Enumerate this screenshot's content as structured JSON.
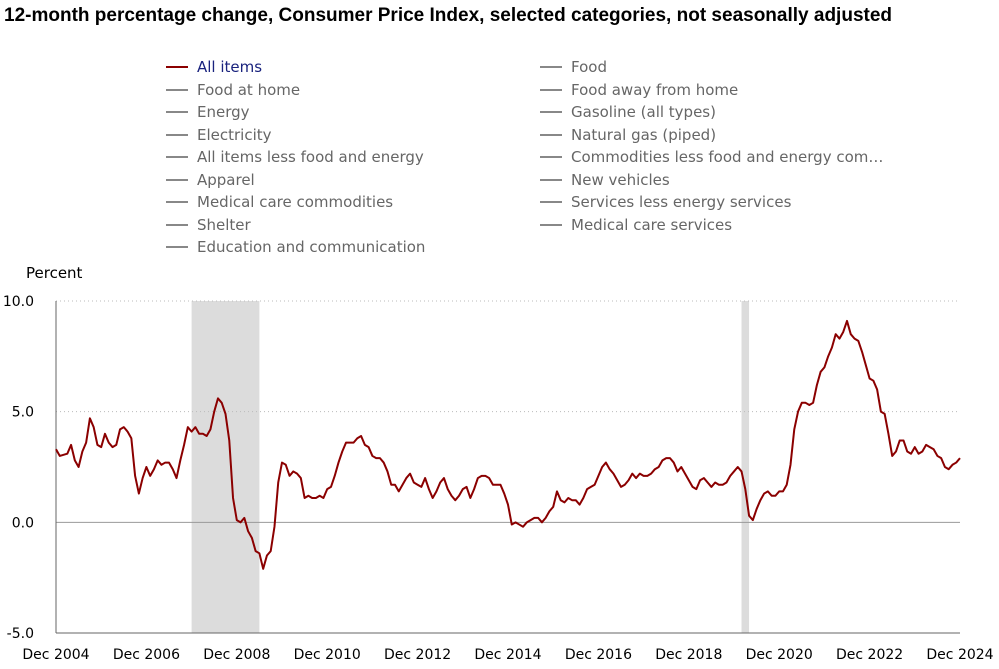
{
  "chart_data": {
    "type": "line",
    "title": "12-month percentage change, Consumer Price Index, selected categories, not seasonally adjusted",
    "ylabel": "Percent",
    "xlabel": "",
    "ylim": [
      -5.0,
      10.0
    ],
    "y_ticks": [
      "10.0",
      "5.0",
      "0.0",
      "-5.0"
    ],
    "x_ticks": [
      "Dec 2004",
      "Dec 2006",
      "Dec 2008",
      "Dec 2010",
      "Dec 2012",
      "Dec 2014",
      "Dec 2016",
      "Dec 2018",
      "Dec 2020",
      "Dec 2022",
      "Dec 2024"
    ],
    "grid": "horizontal dotted",
    "recessions": [
      {
        "start": "Dec 2007",
        "end": "Jun 2009"
      },
      {
        "start": "Feb 2020",
        "end": "Apr 2020"
      }
    ],
    "legend": [
      {
        "label": "All items",
        "active": true
      },
      {
        "label": "Food at home",
        "active": false
      },
      {
        "label": "Energy",
        "active": false
      },
      {
        "label": "Electricity",
        "active": false
      },
      {
        "label": "All items less food and energy",
        "active": false
      },
      {
        "label": "Apparel",
        "active": false
      },
      {
        "label": "Medical care commodities",
        "active": false
      },
      {
        "label": "Shelter",
        "active": false
      },
      {
        "label": "Education and communication",
        "active": false
      },
      {
        "label": "Food",
        "active": false
      },
      {
        "label": "Food away from home",
        "active": false
      },
      {
        "label": "Gasoline (all types)",
        "active": false
      },
      {
        "label": "Natural gas (piped)",
        "active": false
      },
      {
        "label": "Commodities less food and energy com…",
        "active": false
      },
      {
        "label": "New vehicles",
        "active": false
      },
      {
        "label": "Services less energy services",
        "active": false
      },
      {
        "label": "Medical care services",
        "active": false
      }
    ],
    "series": [
      {
        "name": "All items",
        "color": "#8b0000",
        "start": "Dec 2004",
        "keypoints": [
          [
            "Dec 2004",
            3.3
          ],
          [
            "Jan 2005",
            3.0
          ],
          [
            "Mar 2005",
            3.1
          ],
          [
            "Apr 2005",
            3.5
          ],
          [
            "May 2005",
            2.8
          ],
          [
            "Jun 2005",
            2.5
          ],
          [
            "Jul 2005",
            3.2
          ],
          [
            "Aug 2005",
            3.6
          ],
          [
            "Sep 2005",
            4.7
          ],
          [
            "Oct 2005",
            4.3
          ],
          [
            "Nov 2005",
            3.5
          ],
          [
            "Dec 2005",
            3.4
          ],
          [
            "Jan 2006",
            4.0
          ],
          [
            "Feb 2006",
            3.6
          ],
          [
            "Mar 2006",
            3.4
          ],
          [
            "Apr 2006",
            3.5
          ],
          [
            "May 2006",
            4.2
          ],
          [
            "Jun 2006",
            4.3
          ],
          [
            "Jul 2006",
            4.1
          ],
          [
            "Aug 2006",
            3.8
          ],
          [
            "Sep 2006",
            2.1
          ],
          [
            "Oct 2006",
            1.3
          ],
          [
            "Nov 2006",
            2.0
          ],
          [
            "Dec 2006",
            2.5
          ],
          [
            "Jan 2007",
            2.1
          ],
          [
            "Feb 2007",
            2.4
          ],
          [
            "Mar 2007",
            2.8
          ],
          [
            "Apr 2007",
            2.6
          ],
          [
            "May 2007",
            2.7
          ],
          [
            "Jun 2007",
            2.7
          ],
          [
            "Jul 2007",
            2.4
          ],
          [
            "Aug 2007",
            2.0
          ],
          [
            "Sep 2007",
            2.8
          ],
          [
            "Oct 2007",
            3.5
          ],
          [
            "Nov 2007",
            4.3
          ],
          [
            "Dec 2007",
            4.1
          ],
          [
            "Jan 2008",
            4.3
          ],
          [
            "Feb 2008",
            4.0
          ],
          [
            "Mar 2008",
            4.0
          ],
          [
            "Apr 2008",
            3.9
          ],
          [
            "May 2008",
            4.2
          ],
          [
            "Jun 2008",
            5.0
          ],
          [
            "Jul 2008",
            5.6
          ],
          [
            "Aug 2008",
            5.4
          ],
          [
            "Sep 2008",
            4.9
          ],
          [
            "Oct 2008",
            3.7
          ],
          [
            "Nov 2008",
            1.1
          ],
          [
            "Dec 2008",
            0.1
          ],
          [
            "Jan 2009",
            0.0
          ],
          [
            "Feb 2009",
            0.2
          ],
          [
            "Mar 2009",
            -0.4
          ],
          [
            "Apr 2009",
            -0.7
          ],
          [
            "May 2009",
            -1.3
          ],
          [
            "Jun 2009",
            -1.4
          ],
          [
            "Jul 2009",
            -2.1
          ],
          [
            "Aug 2009",
            -1.5
          ],
          [
            "Sep 2009",
            -1.3
          ],
          [
            "Oct 2009",
            -0.2
          ],
          [
            "Nov 2009",
            1.8
          ],
          [
            "Dec 2009",
            2.7
          ],
          [
            "Jan 2010",
            2.6
          ],
          [
            "Feb 2010",
            2.1
          ],
          [
            "Mar 2010",
            2.3
          ],
          [
            "Apr 2010",
            2.2
          ],
          [
            "May 2010",
            2.0
          ],
          [
            "Jun 2010",
            1.1
          ],
          [
            "Jul 2010",
            1.2
          ],
          [
            "Aug 2010",
            1.1
          ],
          [
            "Sep 2010",
            1.1
          ],
          [
            "Oct 2010",
            1.2
          ],
          [
            "Nov 2010",
            1.1
          ],
          [
            "Dec 2010",
            1.5
          ],
          [
            "Jan 2011",
            1.6
          ],
          [
            "Feb 2011",
            2.1
          ],
          [
            "Mar 2011",
            2.7
          ],
          [
            "Apr 2011",
            3.2
          ],
          [
            "May 2011",
            3.6
          ],
          [
            "Jun 2011",
            3.6
          ],
          [
            "Jul 2011",
            3.6
          ],
          [
            "Aug 2011",
            3.8
          ],
          [
            "Sep 2011",
            3.9
          ],
          [
            "Oct 2011",
            3.5
          ],
          [
            "Nov 2011",
            3.4
          ],
          [
            "Dec 2011",
            3.0
          ],
          [
            "Jan 2012",
            2.9
          ],
          [
            "Feb 2012",
            2.9
          ],
          [
            "Mar 2012",
            2.7
          ],
          [
            "Apr 2012",
            2.3
          ],
          [
            "May 2012",
            1.7
          ],
          [
            "Jun 2012",
            1.7
          ],
          [
            "Jul 2012",
            1.4
          ],
          [
            "Aug 2012",
            1.7
          ],
          [
            "Sep 2012",
            2.0
          ],
          [
            "Oct 2012",
            2.2
          ],
          [
            "Nov 2012",
            1.8
          ],
          [
            "Dec 2012",
            1.7
          ],
          [
            "Jan 2013",
            1.6
          ],
          [
            "Feb 2013",
            2.0
          ],
          [
            "Mar 2013",
            1.5
          ],
          [
            "Apr 2013",
            1.1
          ],
          [
            "May 2013",
            1.4
          ],
          [
            "Jun 2013",
            1.8
          ],
          [
            "Jul 2013",
            2.0
          ],
          [
            "Aug 2013",
            1.5
          ],
          [
            "Sep 2013",
            1.2
          ],
          [
            "Oct 2013",
            1.0
          ],
          [
            "Nov 2013",
            1.2
          ],
          [
            "Dec 2013",
            1.5
          ],
          [
            "Jan 2014",
            1.6
          ],
          [
            "Feb 2014",
            1.1
          ],
          [
            "Mar 2014",
            1.5
          ],
          [
            "Apr 2014",
            2.0
          ],
          [
            "May 2014",
            2.1
          ],
          [
            "Jun 2014",
            2.1
          ],
          [
            "Jul 2014",
            2.0
          ],
          [
            "Aug 2014",
            1.7
          ],
          [
            "Sep 2014",
            1.7
          ],
          [
            "Oct 2014",
            1.7
          ],
          [
            "Nov 2014",
            1.3
          ],
          [
            "Dec 2014",
            0.8
          ],
          [
            "Jan 2015",
            -0.1
          ],
          [
            "Feb 2015",
            0.0
          ],
          [
            "Mar 2015",
            -0.1
          ],
          [
            "Apr 2015",
            -0.2
          ],
          [
            "May 2015",
            0.0
          ],
          [
            "Jun 2015",
            0.1
          ],
          [
            "Jul 2015",
            0.2
          ],
          [
            "Aug 2015",
            0.2
          ],
          [
            "Sep 2015",
            0.0
          ],
          [
            "Oct 2015",
            0.2
          ],
          [
            "Nov 2015",
            0.5
          ],
          [
            "Dec 2015",
            0.7
          ],
          [
            "Jan 2016",
            1.4
          ],
          [
            "Feb 2016",
            1.0
          ],
          [
            "Mar 2016",
            0.9
          ],
          [
            "Apr 2016",
            1.1
          ],
          [
            "May 2016",
            1.0
          ],
          [
            "Jun 2016",
            1.0
          ],
          [
            "Jul 2016",
            0.8
          ],
          [
            "Aug 2016",
            1.1
          ],
          [
            "Sep 2016",
            1.5
          ],
          [
            "Oct 2016",
            1.6
          ],
          [
            "Nov 2016",
            1.7
          ],
          [
            "Dec 2016",
            2.1
          ],
          [
            "Jan 2017",
            2.5
          ],
          [
            "Feb 2017",
            2.7
          ],
          [
            "Mar 2017",
            2.4
          ],
          [
            "Apr 2017",
            2.2
          ],
          [
            "May 2017",
            1.9
          ],
          [
            "Jun 2017",
            1.6
          ],
          [
            "Jul 2017",
            1.7
          ],
          [
            "Aug 2017",
            1.9
          ],
          [
            "Sep 2017",
            2.2
          ],
          [
            "Oct 2017",
            2.0
          ],
          [
            "Nov 2017",
            2.2
          ],
          [
            "Dec 2017",
            2.1
          ],
          [
            "Jan 2018",
            2.1
          ],
          [
            "Feb 2018",
            2.2
          ],
          [
            "Mar 2018",
            2.4
          ],
          [
            "Apr 2018",
            2.5
          ],
          [
            "May 2018",
            2.8
          ],
          [
            "Jun 2018",
            2.9
          ],
          [
            "Jul 2018",
            2.9
          ],
          [
            "Aug 2018",
            2.7
          ],
          [
            "Sep 2018",
            2.3
          ],
          [
            "Oct 2018",
            2.5
          ],
          [
            "Nov 2018",
            2.2
          ],
          [
            "Dec 2018",
            1.9
          ],
          [
            "Jan 2019",
            1.6
          ],
          [
            "Feb 2019",
            1.5
          ],
          [
            "Mar 2019",
            1.9
          ],
          [
            "Apr 2019",
            2.0
          ],
          [
            "May 2019",
            1.8
          ],
          [
            "Jun 2019",
            1.6
          ],
          [
            "Jul 2019",
            1.8
          ],
          [
            "Aug 2019",
            1.7
          ],
          [
            "Sep 2019",
            1.7
          ],
          [
            "Oct 2019",
            1.8
          ],
          [
            "Nov 2019",
            2.1
          ],
          [
            "Dec 2019",
            2.3
          ],
          [
            "Jan 2020",
            2.5
          ],
          [
            "Feb 2020",
            2.3
          ],
          [
            "Mar 2020",
            1.5
          ],
          [
            "Apr 2020",
            0.3
          ],
          [
            "May 2020",
            0.1
          ],
          [
            "Jun 2020",
            0.6
          ],
          [
            "Jul 2020",
            1.0
          ],
          [
            "Aug 2020",
            1.3
          ],
          [
            "Sep 2020",
            1.4
          ],
          [
            "Oct 2020",
            1.2
          ],
          [
            "Nov 2020",
            1.2
          ],
          [
            "Dec 2020",
            1.4
          ],
          [
            "Jan 2021",
            1.4
          ],
          [
            "Feb 2021",
            1.7
          ],
          [
            "Mar 2021",
            2.6
          ],
          [
            "Apr 2021",
            4.2
          ],
          [
            "May 2021",
            5.0
          ],
          [
            "Jun 2021",
            5.4
          ],
          [
            "Jul 2021",
            5.4
          ],
          [
            "Aug 2021",
            5.3
          ],
          [
            "Sep 2021",
            5.4
          ],
          [
            "Oct 2021",
            6.2
          ],
          [
            "Nov 2021",
            6.8
          ],
          [
            "Dec 2021",
            7.0
          ],
          [
            "Jan 2022",
            7.5
          ],
          [
            "Feb 2022",
            7.9
          ],
          [
            "Mar 2022",
            8.5
          ],
          [
            "Apr 2022",
            8.3
          ],
          [
            "May 2022",
            8.6
          ],
          [
            "Jun 2022",
            9.1
          ],
          [
            "Jul 2022",
            8.5
          ],
          [
            "Aug 2022",
            8.3
          ],
          [
            "Sep 2022",
            8.2
          ],
          [
            "Oct 2022",
            7.7
          ],
          [
            "Nov 2022",
            7.1
          ],
          [
            "Dec 2022",
            6.5
          ],
          [
            "Jan 2023",
            6.4
          ],
          [
            "Feb 2023",
            6.0
          ],
          [
            "Mar 2023",
            5.0
          ],
          [
            "Apr 2023",
            4.9
          ],
          [
            "May 2023",
            4.0
          ],
          [
            "Jun 2023",
            3.0
          ],
          [
            "Jul 2023",
            3.2
          ],
          [
            "Aug 2023",
            3.7
          ],
          [
            "Sep 2023",
            3.7
          ],
          [
            "Oct 2023",
            3.2
          ],
          [
            "Nov 2023",
            3.1
          ],
          [
            "Dec 2023",
            3.4
          ],
          [
            "Jan 2024",
            3.1
          ],
          [
            "Feb 2024",
            3.2
          ],
          [
            "Mar 2024",
            3.5
          ],
          [
            "Apr 2024",
            3.4
          ],
          [
            "May 2024",
            3.3
          ],
          [
            "Jun 2024",
            3.0
          ],
          [
            "Jul 2024",
            2.9
          ],
          [
            "Aug 2024",
            2.5
          ],
          [
            "Sep 2024",
            2.4
          ],
          [
            "Oct 2024",
            2.6
          ],
          [
            "Nov 2024",
            2.7
          ],
          [
            "Dec 2024",
            2.9
          ]
        ]
      }
    ]
  }
}
